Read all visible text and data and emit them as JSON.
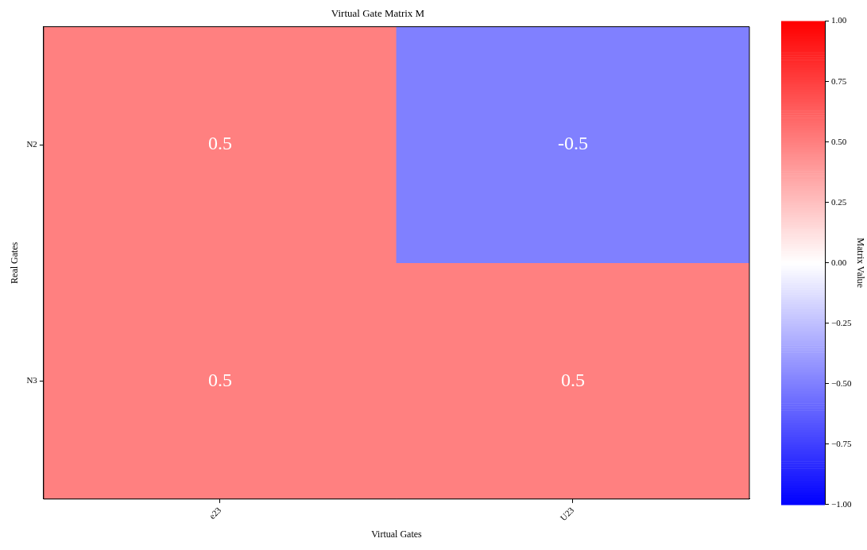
{
  "chart_data": {
    "type": "heatmap",
    "title": "Virtual Gate Matrix M",
    "xlabel": "Virtual Gates",
    "ylabel": "Real Gates",
    "clabel": "Matrix Value",
    "categories": [
      "e23",
      "U23"
    ],
    "y_categories": [
      "N2",
      "N3"
    ],
    "cells": [
      [
        0.5,
        -0.5
      ],
      [
        0.5,
        0.5
      ]
    ],
    "data_labels": true,
    "clim": [
      -1,
      1
    ],
    "cticks": [
      {
        "value": -1,
        "label": "−1.00"
      },
      {
        "value": -0.75,
        "label": "−0.75"
      },
      {
        "value": -0.5,
        "label": "−0.50"
      },
      {
        "value": -0.25,
        "label": "−0.25"
      },
      {
        "value": 0,
        "label": "0.00"
      },
      {
        "value": 0.25,
        "label": "0.25"
      },
      {
        "value": 0.5,
        "label": "0.50"
      },
      {
        "value": 0.75,
        "label": "0.75"
      },
      {
        "value": 1,
        "label": "1.00"
      }
    ]
  }
}
